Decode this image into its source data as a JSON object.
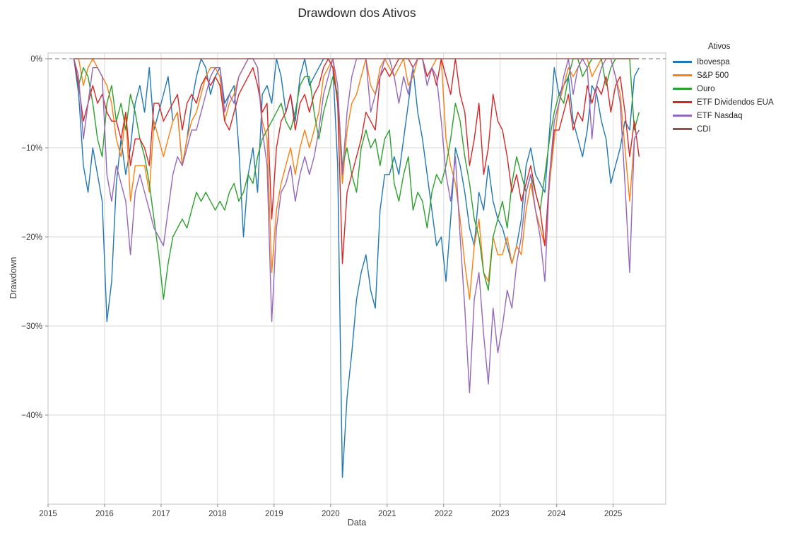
{
  "page": {
    "background": "#ffffff",
    "text_color": "#262626"
  },
  "chart_data": {
    "type": "line",
    "title": "Drawdown dos Ativos",
    "xlabel": "Data",
    "ylabel": "Drawdown",
    "legend_title": "Ativos",
    "legend_position": "outside-right",
    "grid": true,
    "grid_color": "#d9d9d9",
    "spine_color": "#cccccc",
    "tick_color": "#888888",
    "tick_label_color": "#3c3c3c",
    "x_axis": {
      "label": "Data",
      "xlim": [
        2015.0,
        2025.93
      ],
      "xtick_years": [
        2015,
        2016,
        2017,
        2018,
        2019,
        2020,
        2021,
        2022,
        2023,
        2024,
        2025
      ],
      "start_year": 2015,
      "start_month": 6,
      "end_year": 2025,
      "end_month": 6,
      "frequency": "monthly"
    },
    "y_axis": {
      "label": "Drawdown",
      "unit": "percent",
      "ylim": [
        -50.0,
        0.64
      ],
      "yticks": [
        0,
        -10,
        -20,
        -30,
        -40
      ],
      "ytick_labels": [
        "0%",
        "−10%",
        "−20%",
        "−30%",
        "−40%"
      ]
    },
    "zero_reference_line": {
      "value": 0,
      "style": "dashed",
      "color": "#7f7f7f"
    },
    "series": [
      {
        "name": "Ibovespa",
        "color": "#1f77b4",
        "values": [
          0,
          -4,
          -12,
          -15,
          -10,
          -13,
          -16,
          -29.5,
          -25,
          -14,
          -9,
          -13,
          -10,
          -5,
          -3,
          -6,
          -1,
          -8,
          -6,
          -4,
          -2,
          -7,
          -6,
          -12,
          -9,
          -5,
          -2,
          0,
          -1,
          -4,
          -2,
          -1,
          -5,
          -4,
          -3,
          -10,
          -20,
          -13,
          -10,
          -15,
          -4,
          -3,
          -5,
          0,
          -2,
          -6,
          -4,
          -7,
          -2,
          0,
          -3,
          -2,
          -1,
          0,
          0,
          -1,
          -12,
          -47,
          -38,
          -33,
          -27,
          -24,
          -22,
          -26,
          -28,
          -17,
          -13,
          -13,
          -11,
          -13,
          -9,
          -5,
          -1,
          -6,
          -9,
          -13,
          -17,
          -21,
          -20,
          -25,
          -18,
          -10,
          -12,
          -15,
          -19,
          -21,
          -15,
          -17,
          -12,
          -16,
          -18,
          -19,
          -21,
          -23,
          -21,
          -18,
          -12,
          -10,
          -13,
          -14,
          -15,
          -8,
          -1,
          -4,
          -3,
          -2,
          -7,
          -9,
          -11,
          -8,
          -3,
          -4,
          -7,
          -9,
          -14,
          -12,
          -10,
          -7,
          -8,
          -2,
          -1
        ]
      },
      {
        "name": "S&P 500",
        "color": "#ff7f0e",
        "values": [
          0,
          0,
          -3,
          -1,
          0,
          -1,
          -2,
          -3,
          -5,
          -9,
          -11,
          -6,
          -16,
          -12,
          -12,
          -12,
          -15,
          -7,
          -9,
          -11,
          -9,
          -7,
          -6,
          -12,
          -9,
          -7,
          -6,
          -4,
          -2,
          -1,
          -1,
          -2,
          -7,
          -5,
          -4,
          -2,
          -1,
          0,
          0,
          -1,
          -7,
          -9,
          -24,
          -17,
          -14,
          -12,
          -10,
          -13,
          -10,
          -8,
          -10,
          -8,
          -6,
          -2,
          -1,
          0,
          -5,
          -14,
          -8,
          -5,
          -4,
          -2,
          0,
          -3,
          -4,
          -1,
          0,
          -1,
          -2,
          -1,
          0,
          -3,
          -2,
          0,
          0,
          -2,
          -1,
          0,
          0,
          -9,
          -12,
          -14,
          -18,
          -23,
          -27,
          -21,
          -18,
          -24,
          -25,
          -20,
          -22,
          -22,
          -20,
          -23,
          -21,
          -22,
          -17,
          -14,
          -17,
          -19,
          -21,
          -14,
          -9,
          -5,
          -3,
          -1,
          -2,
          -1,
          0,
          0,
          -2,
          -1,
          0,
          0,
          0,
          -2,
          -4,
          -10,
          -16,
          -9,
          -8
        ]
      },
      {
        "name": "Ouro",
        "color": "#2ca02c",
        "values": [
          0,
          -3,
          -1,
          -2,
          -5,
          -9,
          -11,
          -5,
          -3,
          -7,
          -5,
          -8,
          -4,
          -6,
          -9,
          -11,
          -14,
          -18,
          -22,
          -27,
          -23,
          -20,
          -19,
          -18,
          -19,
          -17,
          -15,
          -16,
          -15,
          -16,
          -17,
          -16,
          -17,
          -15,
          -14,
          -16,
          -15,
          -13,
          -14,
          -11,
          -9,
          -8,
          -7,
          -6,
          -5,
          -7,
          -8,
          -6,
          -3,
          -2,
          -2,
          -6,
          -9,
          -6,
          -4,
          -2,
          -4,
          -12,
          -10,
          -13,
          -15,
          -10,
          -8,
          -10,
          -9,
          -12,
          -9,
          -8,
          -14,
          -16,
          -13,
          -11,
          -17,
          -15,
          -16,
          -19,
          -15,
          -13,
          -14,
          -12,
          -9,
          -5,
          -7,
          -11,
          -14,
          -18,
          -20,
          -24,
          -26,
          -20,
          -18,
          -16,
          -19,
          -14,
          -11,
          -13,
          -15,
          -13,
          -15,
          -17,
          -13,
          -9,
          -6,
          -4,
          -5,
          -2,
          0,
          0,
          -2,
          -1,
          0,
          0,
          0,
          -3,
          -1,
          0,
          0,
          0,
          0,
          -8,
          -6
        ]
      },
      {
        "name": "ETF Dividendos EUA",
        "color": "#d62728",
        "values": [
          0,
          -3,
          -7,
          -5,
          -3,
          -5,
          -4,
          -6,
          -7,
          -7,
          -9,
          -6,
          -12,
          -9,
          -9,
          -10,
          -12,
          -5,
          -5,
          -7,
          -6,
          -5,
          -4,
          -8,
          -5,
          -4,
          -5,
          -3,
          -2,
          -3,
          -2,
          -3,
          -7,
          -8,
          -6,
          -4,
          -3,
          -2,
          -1,
          -3,
          -6,
          -5,
          -18,
          -10,
          -7,
          -6,
          -4,
          -8,
          -5,
          -4,
          -6,
          -4,
          -3,
          -1,
          0,
          -1,
          -5,
          -23,
          -15,
          -13,
          -11,
          -9,
          -6,
          -7,
          -8,
          -2,
          -1,
          -2,
          -1,
          0,
          0,
          0,
          -1,
          0,
          0,
          -2,
          -1,
          -3,
          0,
          -2,
          -4,
          0,
          -4,
          -6,
          -12,
          -9,
          -5,
          -13,
          -10,
          -4,
          -7,
          -8,
          -11,
          -15,
          -13,
          -16,
          -14,
          -12,
          -15,
          -17,
          -21,
          -13,
          -8,
          -8,
          -6,
          -4,
          -8,
          -6,
          -7,
          -3,
          -5,
          -3,
          -4,
          -2,
          -6,
          -3,
          -2,
          -6,
          -11,
          -7,
          -11
        ]
      },
      {
        "name": "ETF Nasdaq",
        "color": "#9467bd",
        "values": [
          0,
          -2,
          -9,
          -5,
          -1,
          -1,
          -2,
          -13,
          -16,
          -12,
          -14,
          -16,
          -22,
          -15,
          -13,
          -15,
          -17,
          -19,
          -20,
          -21,
          -17,
          -13,
          -11,
          -12,
          -10,
          -8,
          -8,
          -6,
          -4,
          -2,
          -1,
          -1,
          -6,
          -4,
          -5,
          -2,
          -1,
          0,
          0,
          -1,
          -8,
          -12,
          -29.5,
          -19,
          -15,
          -14,
          -12,
          -16,
          -13,
          -11,
          -13,
          -11,
          -8,
          -4,
          -2,
          0,
          -3,
          -13,
          -6,
          -2,
          0,
          0,
          0,
          -6,
          -4,
          -2,
          0,
          0,
          -2,
          -5,
          -2,
          -4,
          -1,
          0,
          0,
          -3,
          -1,
          -2,
          -7,
          -13,
          -16,
          -11,
          -20,
          -28,
          -37.5,
          -27,
          -24,
          -31,
          -36.5,
          -28,
          -33,
          -30,
          -26,
          -28,
          -23,
          -20,
          -15,
          -13,
          -17,
          -20,
          -25,
          -13,
          -7,
          -5,
          -2,
          0,
          -4,
          -1,
          0,
          -1,
          -9,
          -3,
          -1,
          0,
          0,
          -2,
          -5,
          -14,
          -24,
          -9,
          -8
        ]
      },
      {
        "name": "CDI",
        "color": "#8c564b",
        "values": [
          0,
          0,
          0,
          0,
          0,
          0,
          0,
          0,
          0,
          0,
          0,
          0,
          0,
          0,
          0,
          0,
          0,
          0,
          0,
          0,
          0,
          0,
          0,
          0,
          0,
          0,
          0,
          0,
          0,
          0,
          0,
          0,
          0,
          0,
          0,
          0,
          0,
          0,
          0,
          0,
          0,
          0,
          0,
          0,
          0,
          0,
          0,
          0,
          0,
          0,
          0,
          0,
          0,
          0,
          0,
          0,
          0,
          0,
          0,
          0,
          0,
          0,
          0,
          0,
          0,
          0,
          0,
          0,
          0,
          0,
          0,
          0,
          0,
          0,
          0,
          0,
          0,
          0,
          0,
          0,
          0,
          0,
          0,
          0,
          0,
          0,
          0,
          0,
          0,
          0,
          0,
          0,
          0,
          0,
          0,
          0,
          0,
          0,
          0,
          0,
          0,
          0,
          0,
          0,
          0,
          0,
          0,
          0,
          0,
          0,
          0,
          0,
          0,
          0,
          0,
          0,
          0,
          0,
          0,
          0,
          0
        ]
      }
    ]
  }
}
